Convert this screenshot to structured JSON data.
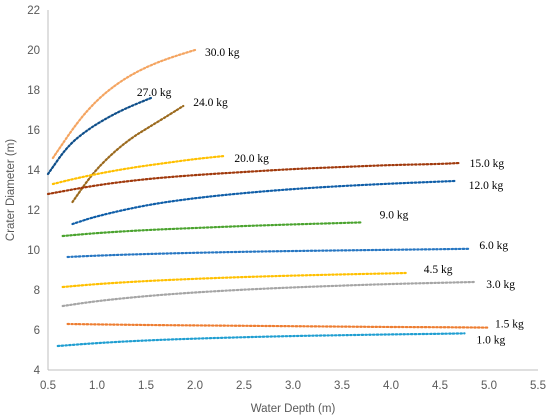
{
  "chart_data": {
    "type": "line",
    "title": "",
    "xlabel": "Water Depth (m)",
    "ylabel": "Crater Diameter (m)",
    "xlim": [
      0.5,
      5.5
    ],
    "ylim": [
      4,
      22
    ],
    "xticks": [
      "0.5",
      "1.0",
      "1.5",
      "2.0",
      "2.5",
      "3.0",
      "3.5",
      "4.0",
      "4.5",
      "5.0",
      "5.5"
    ],
    "yticks": [
      "4",
      "6",
      "8",
      "10",
      "12",
      "14",
      "16",
      "18",
      "20",
      "22"
    ],
    "grid": false,
    "line_style": "dotted",
    "series": [
      {
        "name": "30.0 kg",
        "color": "#f4a460",
        "x": [
          0.55,
          0.8,
          1.0,
          1.2,
          1.4,
          1.6,
          1.8,
          2.0
        ],
        "y": [
          14.6,
          16.4,
          17.5,
          18.3,
          18.9,
          19.35,
          19.7,
          20.0
        ]
      },
      {
        "name": "27.0 kg",
        "color": "#0f4f8a",
        "x": [
          0.5,
          0.7,
          0.9,
          1.1,
          1.3,
          1.55
        ],
        "y": [
          13.8,
          15.2,
          16.0,
          16.6,
          17.1,
          17.6
        ]
      },
      {
        "name": "24.0 kg",
        "color": "#9b6a1e",
        "x": [
          0.75,
          0.95,
          1.15,
          1.35,
          1.55,
          1.75,
          1.88
        ],
        "y": [
          12.4,
          13.8,
          14.8,
          15.6,
          16.2,
          16.8,
          17.2
        ]
      },
      {
        "name": "20.0 kg",
        "color": "#ffc000",
        "x": [
          0.55,
          0.8,
          1.1,
          1.4,
          1.7,
          2.0,
          2.3
        ],
        "y": [
          13.3,
          13.6,
          13.9,
          14.15,
          14.35,
          14.55,
          14.7
        ]
      },
      {
        "name": "15.0 kg",
        "color": "#a0390c",
        "x": [
          0.5,
          1.0,
          1.5,
          2.0,
          2.5,
          3.0,
          3.5,
          4.0,
          4.5,
          4.7
        ],
        "y": [
          12.8,
          13.25,
          13.55,
          13.75,
          13.9,
          14.05,
          14.15,
          14.25,
          14.3,
          14.35
        ]
      },
      {
        "name": "12.0 kg",
        "color": "#0f5ea8",
        "x": [
          0.75,
          1.0,
          1.5,
          2.0,
          2.5,
          3.0,
          3.5,
          4.0,
          4.5,
          4.65
        ],
        "y": [
          11.3,
          11.7,
          12.25,
          12.6,
          12.85,
          13.05,
          13.2,
          13.32,
          13.42,
          13.45
        ]
      },
      {
        "name": "9.0 kg",
        "color": "#4aa32e",
        "x": [
          0.65,
          1.0,
          1.5,
          2.0,
          2.5,
          3.0,
          3.5,
          3.7
        ],
        "y": [
          10.7,
          10.85,
          11.0,
          11.1,
          11.2,
          11.28,
          11.35,
          11.38
        ]
      },
      {
        "name": "6.0 kg",
        "color": "#2676c2",
        "x": [
          0.7,
          1.0,
          1.5,
          2.0,
          2.5,
          3.0,
          3.5,
          4.0,
          4.5,
          4.8
        ],
        "y": [
          9.65,
          9.72,
          9.8,
          9.86,
          9.91,
          9.95,
          9.98,
          10.01,
          10.04,
          10.06
        ]
      },
      {
        "name": "4.5 kg",
        "color": "#ffc000",
        "x": [
          0.65,
          1.0,
          1.5,
          2.0,
          2.5,
          3.0,
          3.5,
          4.0,
          4.15
        ],
        "y": [
          8.15,
          8.3,
          8.45,
          8.56,
          8.65,
          8.72,
          8.78,
          8.83,
          8.85
        ]
      },
      {
        "name": "3.0 kg",
        "color": "#a5a5a5",
        "x": [
          0.65,
          1.0,
          1.5,
          2.0,
          2.5,
          3.0,
          3.5,
          4.0,
          4.5,
          4.85
        ],
        "y": [
          7.2,
          7.45,
          7.7,
          7.88,
          8.02,
          8.13,
          8.22,
          8.3,
          8.36,
          8.4
        ]
      },
      {
        "name": "1.5 kg",
        "color": "#ed7d31",
        "x": [
          0.7,
          1.0,
          1.5,
          2.0,
          2.5,
          3.0,
          3.5,
          4.0,
          4.5,
          5.0
        ],
        "y": [
          6.3,
          6.28,
          6.25,
          6.23,
          6.21,
          6.19,
          6.17,
          6.15,
          6.14,
          6.12
        ]
      },
      {
        "name": "1.0 kg",
        "color": "#1f9ed1",
        "x": [
          0.6,
          1.0,
          1.5,
          2.0,
          2.5,
          3.0,
          3.5,
          4.0,
          4.5,
          4.75
        ],
        "y": [
          5.2,
          5.35,
          5.48,
          5.57,
          5.64,
          5.7,
          5.74,
          5.78,
          5.81,
          5.83
        ]
      }
    ]
  }
}
